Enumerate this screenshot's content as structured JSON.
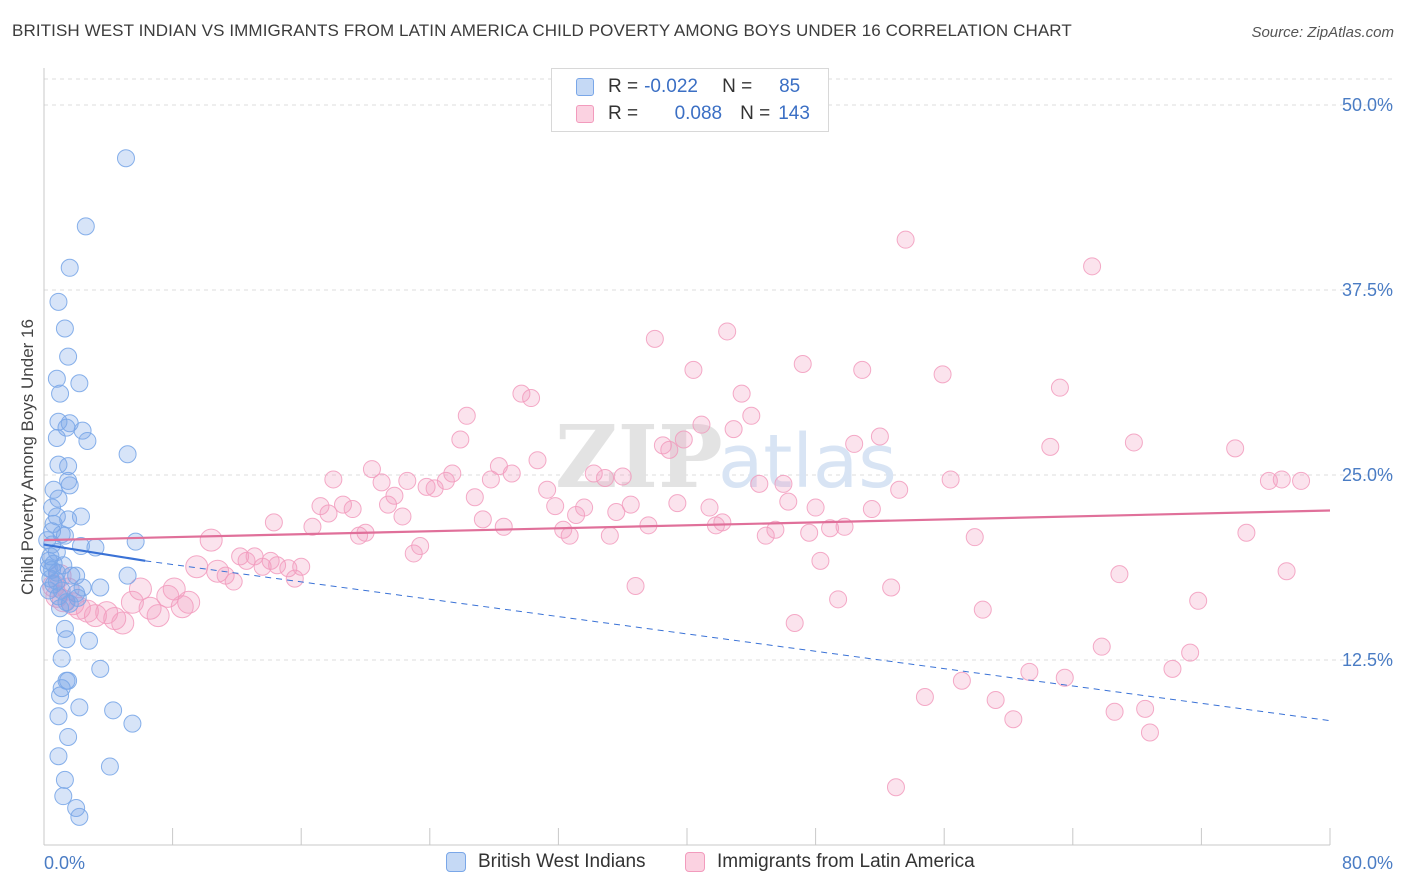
{
  "title": "BRITISH WEST INDIAN VS IMMIGRANTS FROM LATIN AMERICA CHILD POVERTY AMONG BOYS UNDER 16 CORRELATION CHART",
  "source": "Source: ZipAtlas.com",
  "watermark": {
    "zip": "ZIP",
    "atlas": "atlas"
  },
  "legend": {
    "rows": [
      {
        "r_label": "R =",
        "r_value": "-0.022",
        "n_label": "N =",
        "n_value": "85"
      },
      {
        "r_label": "R =",
        "r_value": "0.088",
        "n_label": "N =",
        "n_value": "143"
      }
    ]
  },
  "bottom_legend": {
    "series1": "British West Indians",
    "series2": "Immigrants from Latin America"
  },
  "chart_data": {
    "type": "scatter",
    "title": "BRITISH WEST INDIAN VS IMMIGRANTS FROM LATIN AMERICA CHILD POVERTY AMONG BOYS UNDER 16 CORRELATION CHART",
    "xlabel": "",
    "ylabel": "Child Poverty Among Boys Under 16",
    "xlim": [
      0,
      80
    ],
    "ylim": [
      0,
      52.5
    ],
    "x_tick_labels": [
      "0.0%",
      "80.0%"
    ],
    "y_ticks": [
      12.5,
      25.0,
      37.5,
      50.0
    ],
    "y_tick_labels": [
      "12.5%",
      "25.0%",
      "37.5%",
      "50.0%"
    ],
    "colors": {
      "series1": "#7aa7e8",
      "series1_line": "#3a72d6",
      "series2": "#f29bbd",
      "series2_line": "#e0709a"
    },
    "series": [
      {
        "name": "British West Indians",
        "R": -0.022,
        "N": 85,
        "trend": {
          "solid": [
            [
              0,
              20.3
            ],
            [
              6.3,
              19.2
            ]
          ],
          "dashed": [
            [
              6.3,
              19.2
            ],
            [
              80,
              8.4
            ]
          ]
        },
        "points": [
          [
            5.1,
            46.4
          ],
          [
            2.6,
            41.8
          ],
          [
            1.6,
            39.0
          ],
          [
            0.9,
            36.7
          ],
          [
            1.3,
            34.9
          ],
          [
            1.5,
            33.0
          ],
          [
            0.8,
            31.5
          ],
          [
            2.2,
            31.2
          ],
          [
            1.0,
            30.5
          ],
          [
            1.6,
            28.5
          ],
          [
            2.4,
            28.0
          ],
          [
            0.9,
            28.6
          ],
          [
            1.4,
            28.2
          ],
          [
            2.7,
            27.3
          ],
          [
            0.8,
            27.5
          ],
          [
            5.2,
            26.4
          ],
          [
            1.5,
            25.6
          ],
          [
            0.9,
            25.7
          ],
          [
            1.5,
            24.6
          ],
          [
            1.6,
            24.3
          ],
          [
            0.6,
            24.0
          ],
          [
            0.9,
            23.4
          ],
          [
            0.5,
            22.8
          ],
          [
            0.8,
            22.2
          ],
          [
            2.3,
            22.2
          ],
          [
            1.5,
            22.0
          ],
          [
            0.6,
            21.7
          ],
          [
            0.5,
            21.2
          ],
          [
            1.1,
            21.0
          ],
          [
            1.3,
            20.9
          ],
          [
            0.2,
            20.6
          ],
          [
            0.5,
            20.3
          ],
          [
            5.7,
            20.5
          ],
          [
            2.3,
            20.2
          ],
          [
            3.2,
            20.1
          ],
          [
            0.8,
            19.8
          ],
          [
            0.4,
            19.5
          ],
          [
            0.3,
            19.2
          ],
          [
            0.6,
            19.0
          ],
          [
            1.2,
            18.9
          ],
          [
            0.3,
            18.7
          ],
          [
            0.5,
            18.6
          ],
          [
            0.8,
            18.4
          ],
          [
            1.7,
            18.2
          ],
          [
            2.0,
            18.2
          ],
          [
            0.4,
            18.0
          ],
          [
            0.8,
            17.8
          ],
          [
            5.2,
            18.2
          ],
          [
            0.6,
            17.6
          ],
          [
            2.4,
            17.4
          ],
          [
            3.5,
            17.4
          ],
          [
            0.3,
            17.2
          ],
          [
            1.1,
            17.2
          ],
          [
            2.0,
            17.0
          ],
          [
            0.9,
            16.8
          ],
          [
            2.1,
            16.7
          ],
          [
            1.4,
            16.4
          ],
          [
            1.6,
            16.3
          ],
          [
            1.0,
            16.0
          ],
          [
            1.3,
            14.6
          ],
          [
            1.4,
            13.9
          ],
          [
            2.8,
            13.8
          ],
          [
            1.1,
            12.6
          ],
          [
            3.5,
            11.9
          ],
          [
            1.4,
            11.1
          ],
          [
            1.5,
            11.1
          ],
          [
            1.1,
            10.6
          ],
          [
            1.0,
            10.1
          ],
          [
            2.2,
            9.3
          ],
          [
            4.3,
            9.1
          ],
          [
            0.9,
            8.7
          ],
          [
            5.5,
            8.2
          ],
          [
            1.5,
            7.3
          ],
          [
            0.9,
            6.0
          ],
          [
            4.1,
            5.3
          ],
          [
            1.3,
            4.4
          ],
          [
            1.2,
            3.3
          ],
          [
            2.0,
            2.5
          ],
          [
            2.2,
            1.9
          ]
        ]
      },
      {
        "name": "Immigrants from Latin America",
        "R": 0.088,
        "N": 143,
        "trend": {
          "solid": [
            [
              0,
              20.6
            ],
            [
              80,
              22.6
            ]
          ]
        },
        "points": [
          [
            1.0,
            18.2
          ],
          [
            0.6,
            17.5
          ],
          [
            1.5,
            17.3
          ],
          [
            0.8,
            16.8
          ],
          [
            1.2,
            16.5
          ],
          [
            1.8,
            16.3
          ],
          [
            2.2,
            16.0
          ],
          [
            2.7,
            15.8
          ],
          [
            3.2,
            15.5
          ],
          [
            3.9,
            15.7
          ],
          [
            4.4,
            15.3
          ],
          [
            4.9,
            15.0
          ],
          [
            5.5,
            16.4
          ],
          [
            6.0,
            17.3
          ],
          [
            6.6,
            16.0
          ],
          [
            7.1,
            15.5
          ],
          [
            7.7,
            16.8
          ],
          [
            8.1,
            17.3
          ],
          [
            8.6,
            16.1
          ],
          [
            9.0,
            16.4
          ],
          [
            9.5,
            18.8
          ],
          [
            10.4,
            20.6
          ],
          [
            10.8,
            18.5
          ],
          [
            11.3,
            18.2
          ],
          [
            11.8,
            17.8
          ],
          [
            12.2,
            19.5
          ],
          [
            12.6,
            19.2
          ],
          [
            13.1,
            19.5
          ],
          [
            13.6,
            18.8
          ],
          [
            14.1,
            19.2
          ],
          [
            14.5,
            18.9
          ],
          [
            15.2,
            18.7
          ],
          [
            15.6,
            18.0
          ],
          [
            16.0,
            18.8
          ],
          [
            14.3,
            21.8
          ],
          [
            16.7,
            21.5
          ],
          [
            17.2,
            22.9
          ],
          [
            17.7,
            22.4
          ],
          [
            18.0,
            24.7
          ],
          [
            18.6,
            23.0
          ],
          [
            19.2,
            22.7
          ],
          [
            19.6,
            20.9
          ],
          [
            20.0,
            21.1
          ],
          [
            20.4,
            25.4
          ],
          [
            21.0,
            24.5
          ],
          [
            21.4,
            23.0
          ],
          [
            21.8,
            23.6
          ],
          [
            22.3,
            22.2
          ],
          [
            22.6,
            24.6
          ],
          [
            23.0,
            19.7
          ],
          [
            23.4,
            20.2
          ],
          [
            23.8,
            24.2
          ],
          [
            24.3,
            24.1
          ],
          [
            25.0,
            24.6
          ],
          [
            25.4,
            25.1
          ],
          [
            25.9,
            27.4
          ],
          [
            26.3,
            29.0
          ],
          [
            26.8,
            23.5
          ],
          [
            27.3,
            22.0
          ],
          [
            27.8,
            24.7
          ],
          [
            28.3,
            25.6
          ],
          [
            28.6,
            21.5
          ],
          [
            29.1,
            25.1
          ],
          [
            29.7,
            30.5
          ],
          [
            30.3,
            30.2
          ],
          [
            30.7,
            26.0
          ],
          [
            31.3,
            24.0
          ],
          [
            31.8,
            22.9
          ],
          [
            32.3,
            21.3
          ],
          [
            32.7,
            20.9
          ],
          [
            33.1,
            22.3
          ],
          [
            33.6,
            22.8
          ],
          [
            34.2,
            25.1
          ],
          [
            34.9,
            24.8
          ],
          [
            35.2,
            20.9
          ],
          [
            35.6,
            22.5
          ],
          [
            36.0,
            24.9
          ],
          [
            36.5,
            23.0
          ],
          [
            36.8,
            17.5
          ],
          [
            37.6,
            21.6
          ],
          [
            38.0,
            34.2
          ],
          [
            38.5,
            27.0
          ],
          [
            38.9,
            26.7
          ],
          [
            39.4,
            23.1
          ],
          [
            39.8,
            27.4
          ],
          [
            40.4,
            32.1
          ],
          [
            40.9,
            28.4
          ],
          [
            41.4,
            22.8
          ],
          [
            41.8,
            21.6
          ],
          [
            42.2,
            21.8
          ],
          [
            42.5,
            34.7
          ],
          [
            42.9,
            28.1
          ],
          [
            43.4,
            30.5
          ],
          [
            44.0,
            29.0
          ],
          [
            44.5,
            24.4
          ],
          [
            44.9,
            20.9
          ],
          [
            45.5,
            21.3
          ],
          [
            46.0,
            24.4
          ],
          [
            46.3,
            23.2
          ],
          [
            46.7,
            15.0
          ],
          [
            47.2,
            32.5
          ],
          [
            47.6,
            21.1
          ],
          [
            48.0,
            22.8
          ],
          [
            48.3,
            19.2
          ],
          [
            48.9,
            21.4
          ],
          [
            49.4,
            16.6
          ],
          [
            49.8,
            21.5
          ],
          [
            50.4,
            27.1
          ],
          [
            50.9,
            32.1
          ],
          [
            51.5,
            22.7
          ],
          [
            52.0,
            27.6
          ],
          [
            52.7,
            17.4
          ],
          [
            53.2,
            24.0
          ],
          [
            53.6,
            40.9
          ],
          [
            54.8,
            10.0
          ],
          [
            55.9,
            31.8
          ],
          [
            56.4,
            24.7
          ],
          [
            57.1,
            11.1
          ],
          [
            57.9,
            20.8
          ],
          [
            58.4,
            15.9
          ],
          [
            59.2,
            9.8
          ],
          [
            60.3,
            8.5
          ],
          [
            61.3,
            11.7
          ],
          [
            62.6,
            26.9
          ],
          [
            63.2,
            30.9
          ],
          [
            63.5,
            11.3
          ],
          [
            65.2,
            39.1
          ],
          [
            65.8,
            13.4
          ],
          [
            66.6,
            9.0
          ],
          [
            66.9,
            18.3
          ],
          [
            67.8,
            27.2
          ],
          [
            68.5,
            9.2
          ],
          [
            68.8,
            7.6
          ],
          [
            70.2,
            11.9
          ],
          [
            71.3,
            13.0
          ],
          [
            71.8,
            16.5
          ],
          [
            74.1,
            26.8
          ],
          [
            74.8,
            21.1
          ],
          [
            76.2,
            24.6
          ],
          [
            77.0,
            24.7
          ],
          [
            77.3,
            18.5
          ],
          [
            78.2,
            24.6
          ],
          [
            53.0,
            3.9
          ]
        ]
      }
    ]
  }
}
